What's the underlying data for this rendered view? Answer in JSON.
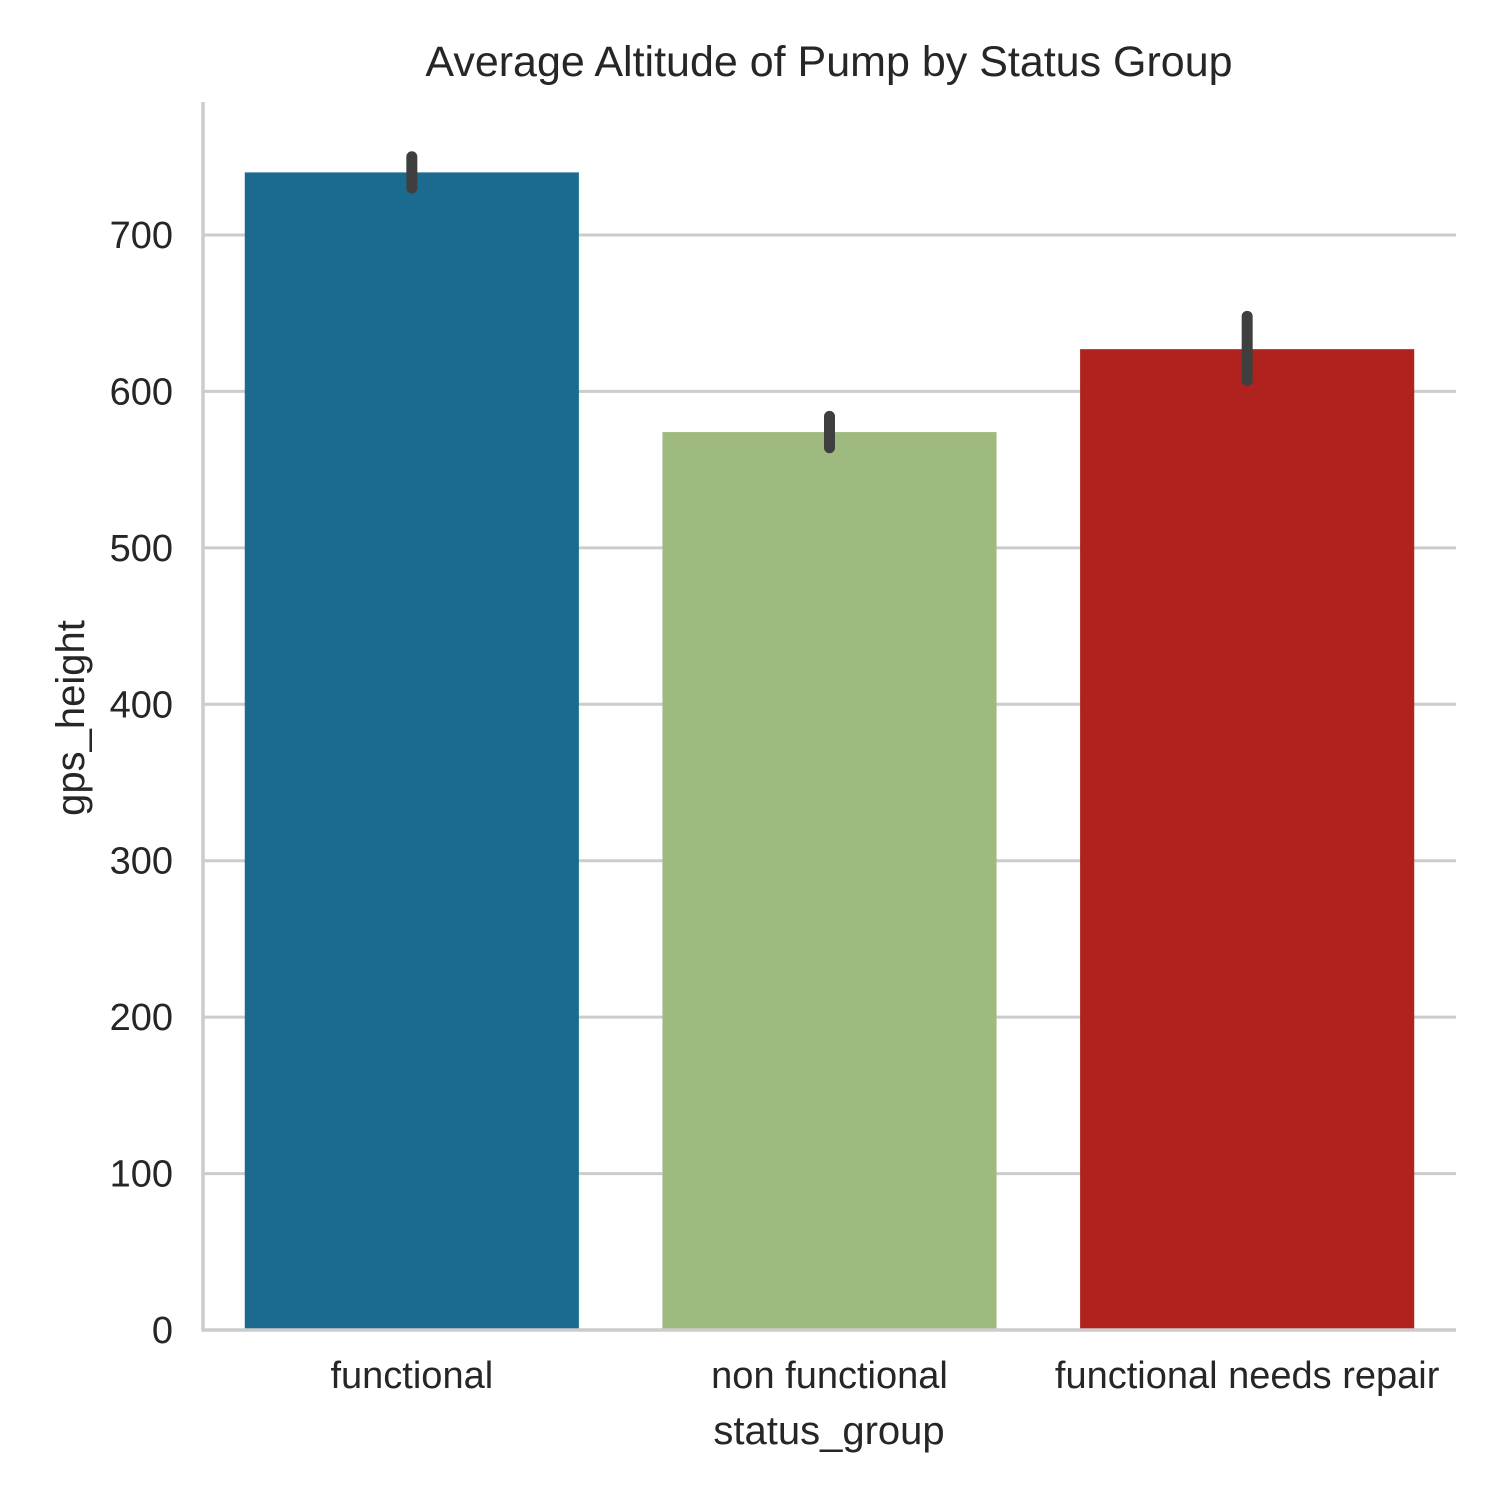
{
  "chart_data": {
    "type": "bar",
    "title": "Average Altitude of Pump by Status Group",
    "xlabel": "status_group",
    "ylabel": "gps_height",
    "categories": [
      "functional",
      "non functional",
      "functional needs repair"
    ],
    "values": [
      740,
      574,
      627
    ],
    "error_bars": [
      {
        "low": 730,
        "high": 750
      },
      {
        "low": 564,
        "high": 584
      },
      {
        "low": 607,
        "high": 648
      }
    ],
    "colors": [
      "#1a6b8f",
      "#9fba7f",
      "#b0221e"
    ],
    "ylim": [
      0,
      785
    ],
    "yticks": [
      0,
      100,
      200,
      300,
      400,
      500,
      600,
      700
    ],
    "grid": "horizontal",
    "legend": "none"
  }
}
